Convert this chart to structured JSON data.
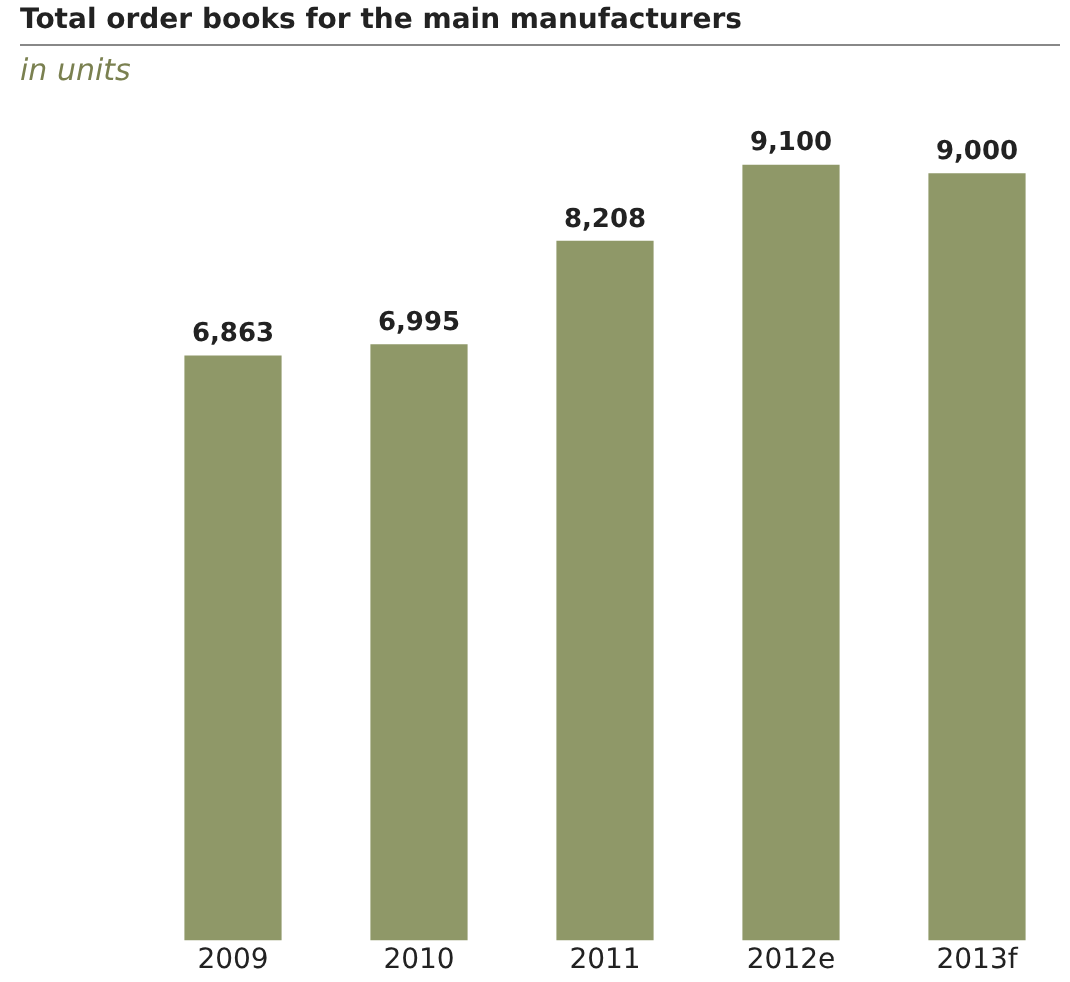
{
  "chart_data": {
    "type": "bar",
    "title": "Total order books for the main manufacturers",
    "subtitle": "in units",
    "categories": [
      "2009",
      "2010",
      "2011",
      "2012e",
      "2013f"
    ],
    "values": [
      6863,
      6995,
      8208,
      9100,
      9000
    ],
    "value_labels": [
      "6,863",
      "6,995",
      "8,208",
      "9,100",
      "9,000"
    ],
    "color": "#8f9868",
    "grid": false,
    "legend": false
  }
}
